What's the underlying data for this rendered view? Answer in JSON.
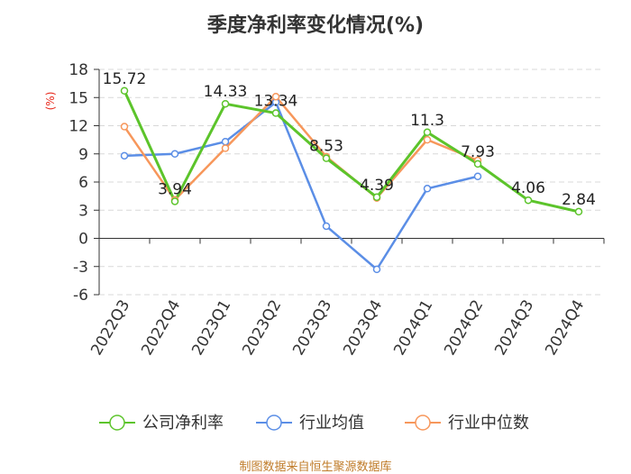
{
  "title": "季度净利率变化情况(%)",
  "footer": "制图数据来自恒生聚源数据库",
  "chart_data": {
    "type": "line",
    "title": "季度净利率变化情况(%)",
    "ylabel": "(%)",
    "ylim": [
      -6,
      18
    ],
    "yticks": [
      18,
      15,
      12,
      9,
      6,
      3,
      0,
      -3,
      -6
    ],
    "grid": true,
    "legend_position": "bottom",
    "categories": [
      "2022Q3",
      "2022Q4",
      "2023Q1",
      "2023Q2",
      "2023Q3",
      "2023Q4",
      "2024Q1",
      "2024Q2",
      "2024Q3",
      "2024Q4"
    ],
    "series": [
      {
        "name": "公司净利率",
        "color": "#5cc42b",
        "values": [
          15.72,
          3.94,
          14.33,
          13.34,
          8.53,
          4.39,
          11.3,
          7.93,
          4.06,
          2.84
        ],
        "labels": [
          "15.72",
          "3.94",
          "14.33",
          "13.34",
          "8.53",
          "4.39",
          "11.3",
          "7.93",
          "4.06",
          "2.84"
        ]
      },
      {
        "name": "行业均值",
        "color": "#5b8ee6",
        "values": [
          8.8,
          9.0,
          10.3,
          14.5,
          1.3,
          -3.3,
          5.3,
          6.6,
          null,
          null
        ]
      },
      {
        "name": "行业中位数",
        "color": "#f7975b",
        "values": [
          11.9,
          4.1,
          9.6,
          15.1,
          8.7,
          4.3,
          10.5,
          8.3,
          null,
          null
        ]
      }
    ]
  }
}
